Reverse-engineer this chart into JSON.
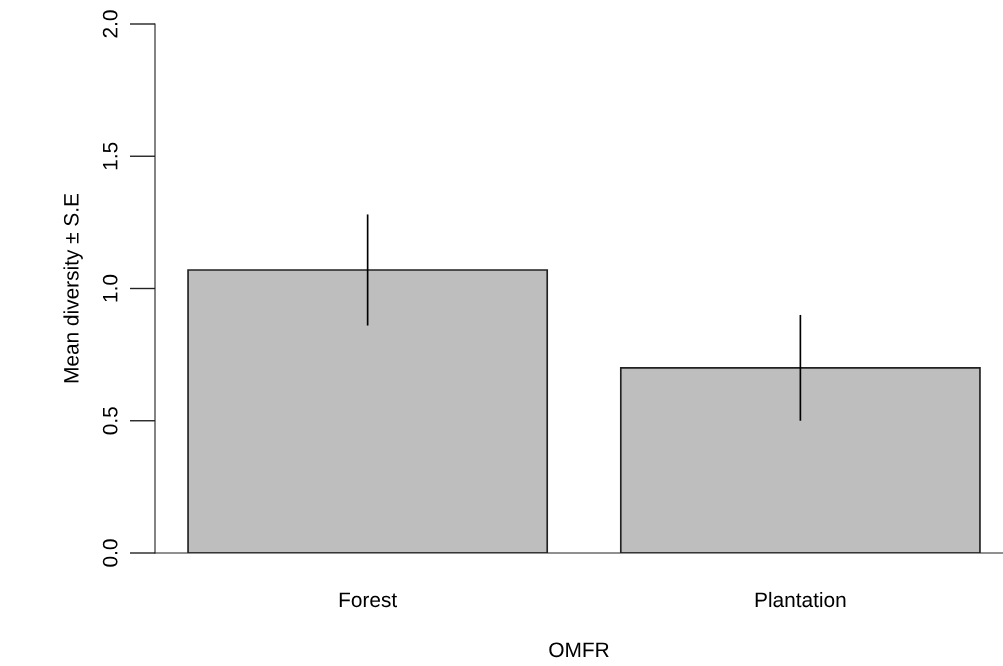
{
  "chart_data": {
    "type": "bar",
    "xlabel": "OMFR",
    "ylabel": "Mean diversity ± S.E",
    "categories": [
      "Forest",
      "Plantation"
    ],
    "values": [
      1.07,
      0.7
    ],
    "errors": [
      0.21,
      0.2
    ],
    "color": "#bebebe",
    "ylim": [
      0,
      2
    ],
    "yticks": [
      {
        "value": 0,
        "label": "0.0"
      },
      0.5,
      {
        "value": 1,
        "label": "1.0"
      },
      1.5,
      {
        "value": 2,
        "label": "2.0"
      }
    ],
    "grid": false,
    "legend": false
  }
}
